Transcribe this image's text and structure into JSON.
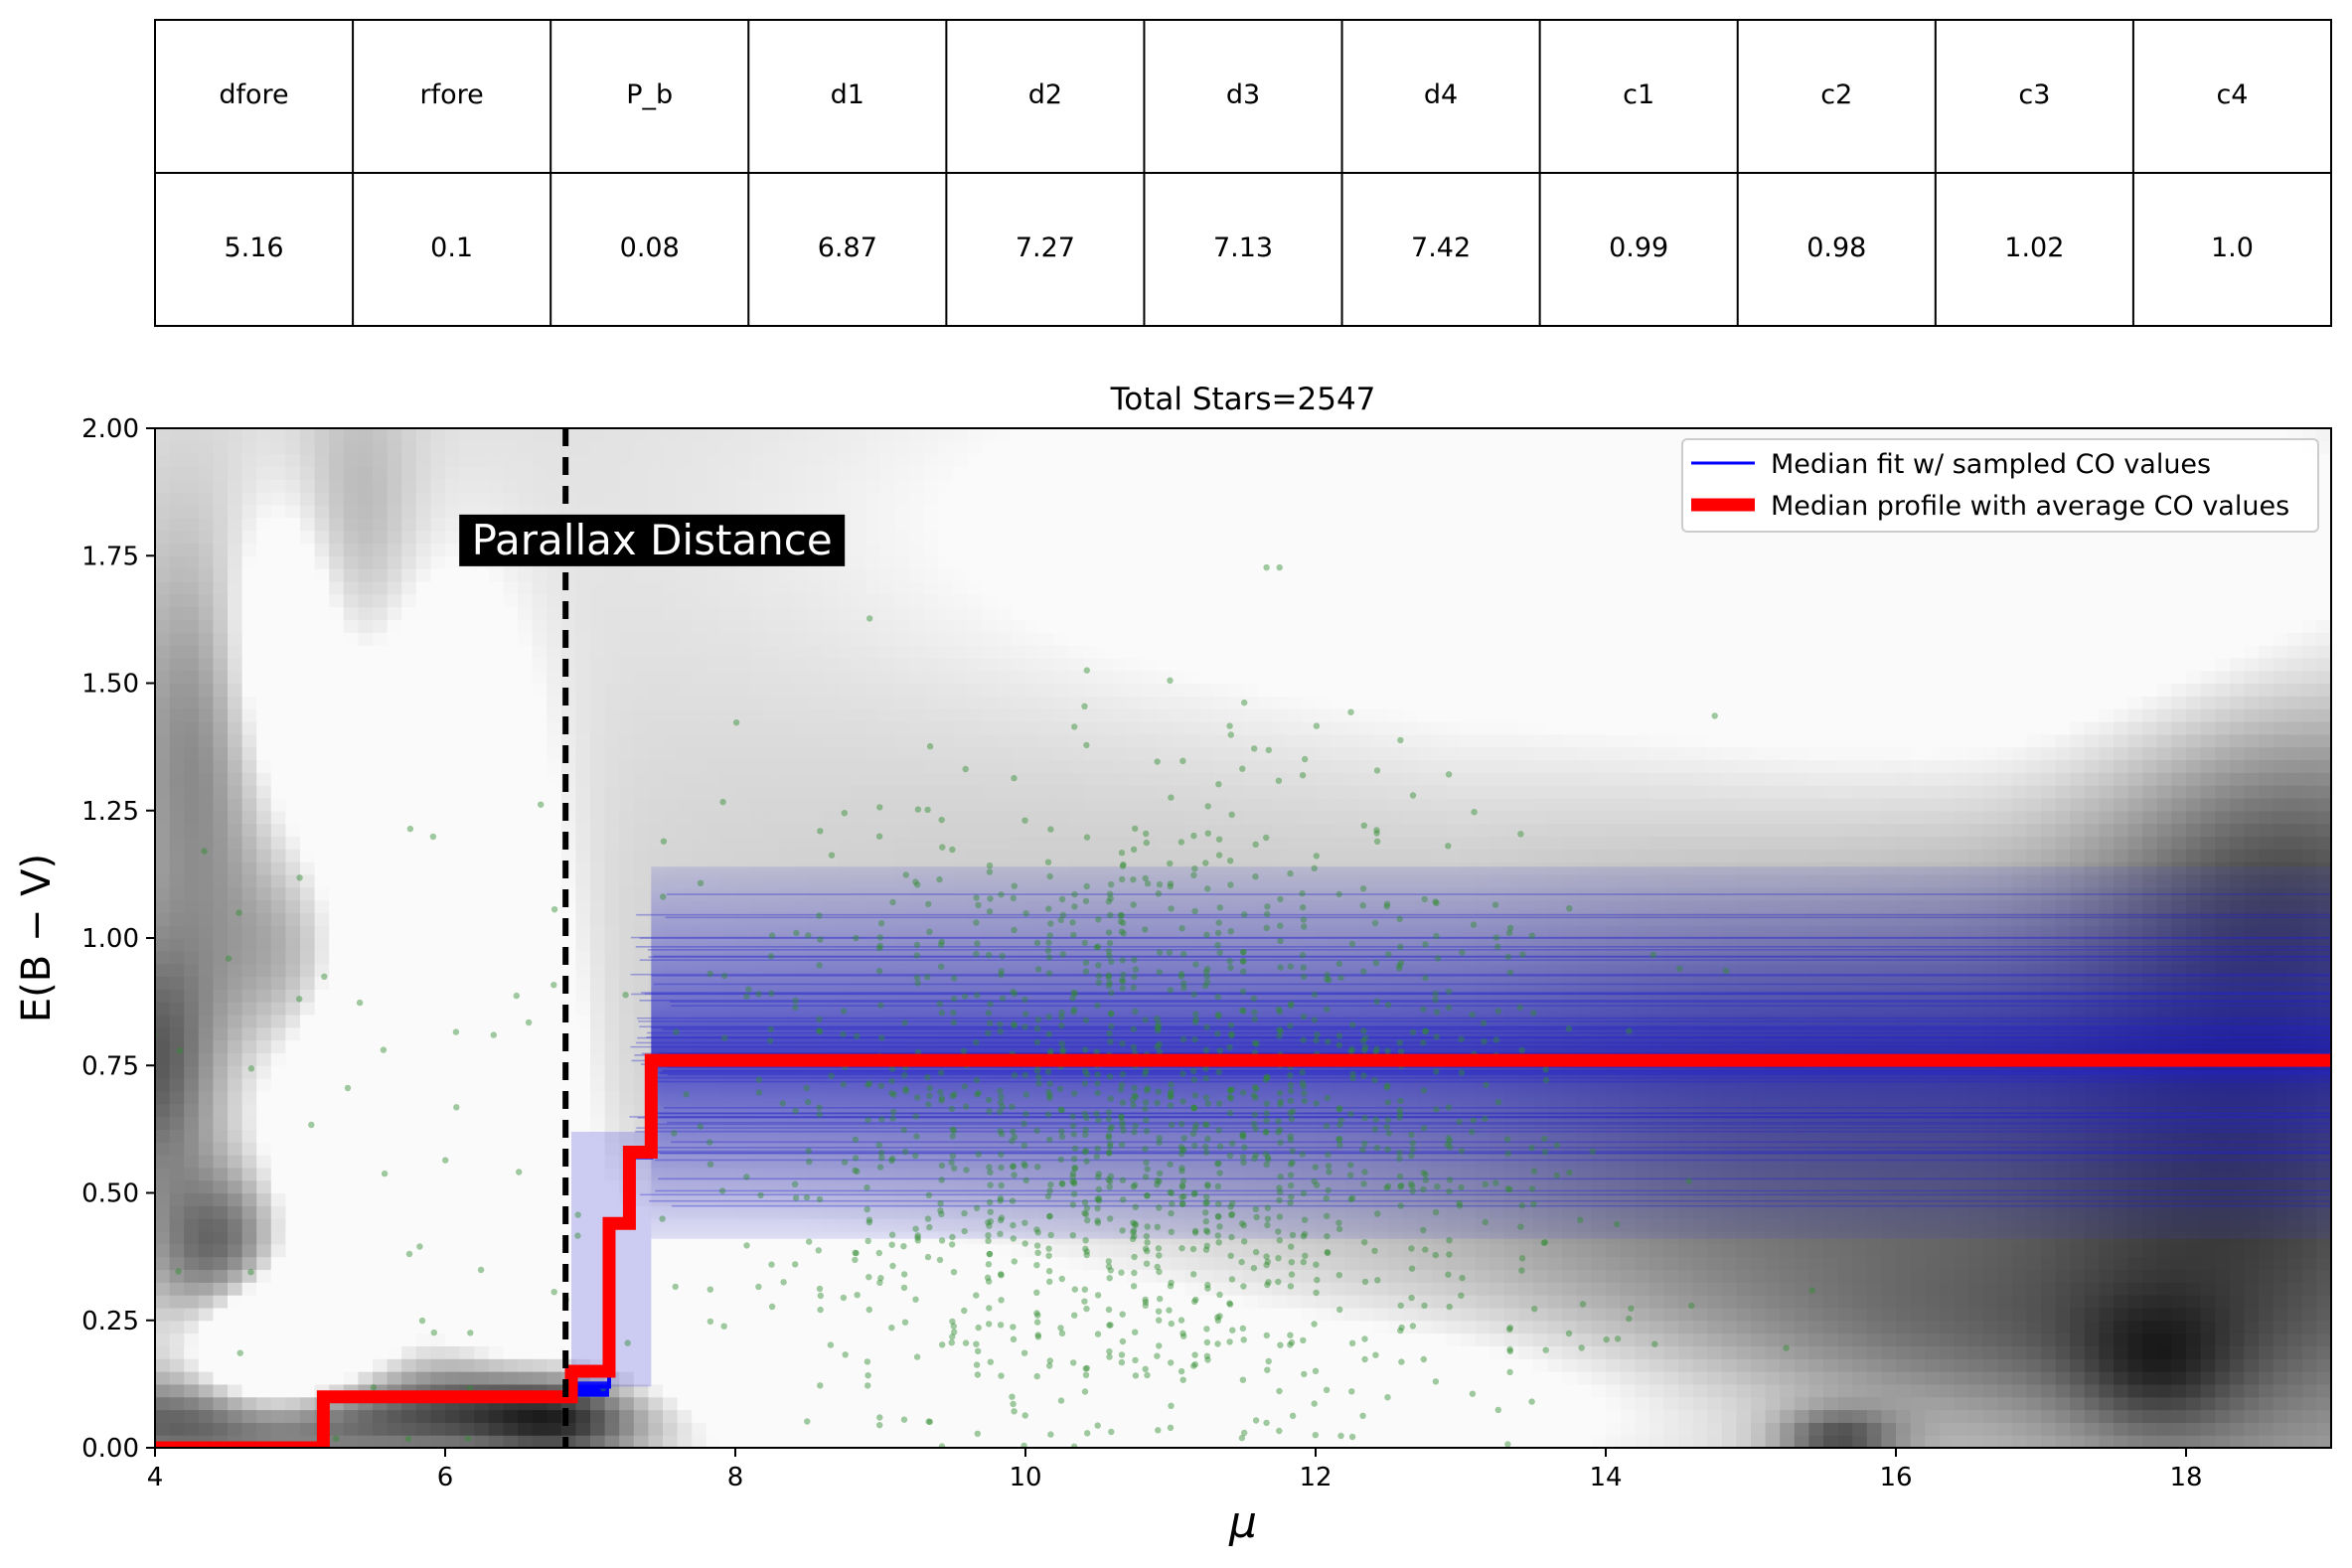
{
  "table": {
    "headers": [
      "dfore",
      "rfore",
      "P_b",
      "d1",
      "d2",
      "d3",
      "d4",
      "c1",
      "c2",
      "c3",
      "c4"
    ],
    "values": [
      "5.16",
      "0.1",
      "0.08",
      "6.87",
      "7.27",
      "7.13",
      "7.42",
      "0.99",
      "0.98",
      "1.02",
      "1.0"
    ]
  },
  "chart_data": {
    "type": "line",
    "title": "Total Stars=2547",
    "xlabel": "μ",
    "ylabel": "E(B − V)",
    "xlim": [
      4,
      19
    ],
    "ylim": [
      0,
      2
    ],
    "xticks": [
      4,
      6,
      8,
      10,
      12,
      14,
      16,
      18
    ],
    "xtick_labels": [
      "4",
      "6",
      "8",
      "10",
      "12",
      "14",
      "16",
      "18"
    ],
    "yticks": [
      0,
      0.25,
      0.5,
      0.75,
      1.0,
      1.25,
      1.5,
      1.75,
      2.0
    ],
    "ytick_labels": [
      "0.00",
      "0.25",
      "0.50",
      "0.75",
      "1.00",
      "1.25",
      "1.50",
      "1.75",
      "2.00"
    ],
    "grid": false,
    "legend_position": "top-right",
    "annotation": {
      "text": "Parallax Distance",
      "x": 6.83
    },
    "background": "grayscale probability density",
    "series": [
      {
        "name": "Median fit w/ sampled CO values",
        "color": "#0000ff",
        "kind": "step",
        "x": [
          4.0,
          5.16,
          6.87,
          7.13,
          7.27,
          7.42,
          19.0
        ],
        "y": [
          0.0,
          0.1,
          0.12,
          0.44,
          0.57,
          0.76,
          0.76
        ]
      },
      {
        "name": "Median profile with average CO values",
        "color": "#ff0000",
        "kind": "step",
        "x": [
          4.0,
          5.16,
          6.87,
          7.13,
          7.27,
          7.42,
          19.0
        ],
        "y": [
          0.0,
          0.1,
          0.15,
          0.44,
          0.58,
          0.76,
          0.76
        ]
      }
    ],
    "scatter": {
      "name": "stars",
      "color": "#2e8b2e",
      "count": 2547
    }
  }
}
